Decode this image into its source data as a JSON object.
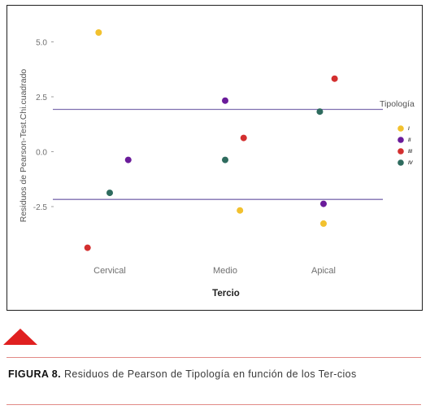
{
  "chart_data": {
    "type": "scatter",
    "ylabel": "Residuos de Pearson-Test.Chi.cuadrado",
    "xlabel": "Tercio",
    "categories": [
      "Cervical",
      "Medio",
      "Apical"
    ],
    "y_ticks": [
      "5.0",
      "2.5",
      "0.0",
      "-2.5"
    ],
    "y_tick_values": [
      5.0,
      2.5,
      0.0,
      -2.5
    ],
    "ylim": [
      -4.6,
      6.0
    ],
    "reference_lines": [
      2.0,
      -2.1
    ],
    "reference_line_color": "#7f6fb0",
    "grid": false,
    "legend": {
      "title": "Tipología",
      "placement": "right",
      "labels": [
        "I",
        "II",
        "III",
        "IV"
      ]
    },
    "series": [
      {
        "name": "I",
        "color": "#f2c12e",
        "points": [
          {
            "x": "Cervical",
            "offset": -0.15,
            "y": 5.5
          },
          {
            "x": "Medio",
            "offset": 0.2,
            "y": -2.6
          },
          {
            "x": "Apical",
            "offset": 0.0,
            "y": -3.2
          }
        ]
      },
      {
        "name": "II",
        "color": "#6a1b9a",
        "points": [
          {
            "x": "Cervical",
            "offset": 0.25,
            "y": -0.3
          },
          {
            "x": "Medio",
            "offset": 0.0,
            "y": 2.4
          },
          {
            "x": "Apical",
            "offset": 0.0,
            "y": -2.3
          }
        ]
      },
      {
        "name": "III",
        "color": "#d32f2f",
        "points": [
          {
            "x": "Cervical",
            "offset": -0.3,
            "y": -4.3
          },
          {
            "x": "Medio",
            "offset": 0.25,
            "y": 0.7
          },
          {
            "x": "Apical",
            "offset": 0.15,
            "y": 3.4
          }
        ]
      },
      {
        "name": "IV",
        "color": "#2e6b5e",
        "points": [
          {
            "x": "Cervical",
            "offset": 0.0,
            "y": -1.8
          },
          {
            "x": "Medio",
            "offset": 0.0,
            "y": -0.3
          },
          {
            "x": "Apical",
            "offset": -0.05,
            "y": 1.9
          }
        ]
      }
    ]
  },
  "caption": {
    "label": "FIGURA 8.",
    "text": "Residuos de Pearson de Tipología en función de los Ter-cios"
  },
  "colors": {
    "accent_triangle": "#e02020",
    "rule": "#e28a86"
  }
}
